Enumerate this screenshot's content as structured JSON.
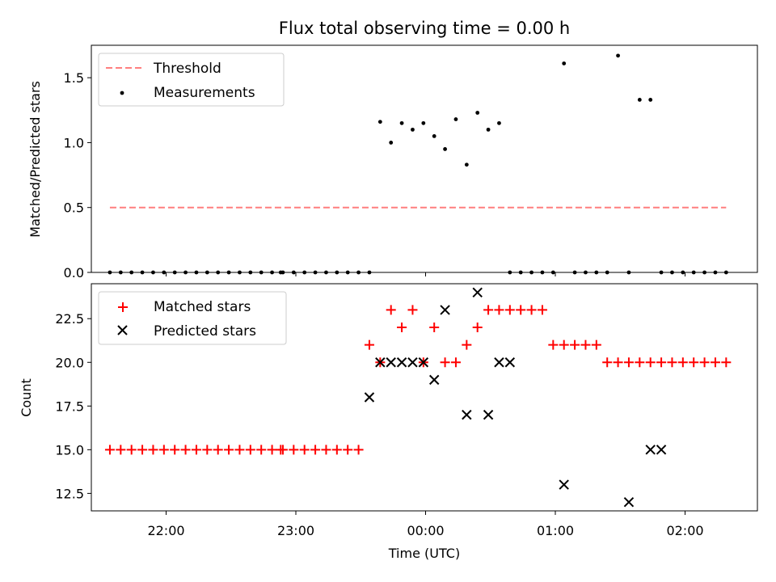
{
  "chart_data": [
    {
      "type": "scatter",
      "title": "Flux total observing time = 0.00 h",
      "xlabel": "",
      "ylabel": "Matched/Predicted stars",
      "ylim": [
        0,
        1.75
      ],
      "yticks": [
        "0.0",
        "0.5",
        "1.0",
        "1.5"
      ],
      "ytick_values": [
        0,
        0.5,
        1.0,
        1.5
      ],
      "legend_position": "upper-left",
      "grid": false,
      "series": [
        {
          "name": "Threshold",
          "kind": "line",
          "style": "dashed",
          "color": "#ff7f7f",
          "x": [
            "21:34",
            "02:19"
          ],
          "y": [
            0.5,
            0.5
          ]
        },
        {
          "name": "Measurements",
          "kind": "scatter",
          "marker": "dot",
          "color": "#000000",
          "x": [
            "21:34",
            "21:39",
            "21:44",
            "21:49",
            "21:54",
            "21:59",
            "22:04",
            "22:09",
            "22:14",
            "22:19",
            "22:24",
            "22:29",
            "22:34",
            "22:39",
            "22:44",
            "22:49",
            "22:53",
            "22:54",
            "22:59",
            "23:04",
            "23:09",
            "23:14",
            "23:19",
            "23:24",
            "23:29",
            "23:34",
            "23:39",
            "23:44",
            "23:49",
            "23:54",
            "23:59",
            "00:04",
            "00:09",
            "00:14",
            "00:19",
            "00:24",
            "00:29",
            "00:34",
            "00:39",
            "00:44",
            "00:49",
            "00:54",
            "00:59",
            "01:04",
            "01:09",
            "01:14",
            "01:19",
            "01:24",
            "01:29",
            "01:34",
            "01:39",
            "01:44",
            "01:49",
            "01:54",
            "01:59",
            "02:04",
            "02:09",
            "02:14",
            "02:19"
          ],
          "y": [
            0,
            0,
            0,
            0,
            0,
            0,
            0,
            0,
            0,
            0,
            0,
            0,
            0,
            0,
            0,
            0,
            0,
            0,
            0,
            0,
            0,
            0,
            0,
            0,
            0,
            0,
            1.16,
            1.0,
            1.15,
            1.1,
            1.15,
            1.05,
            0.95,
            1.18,
            0.83,
            1.23,
            1.1,
            1.15,
            0,
            0,
            0,
            0,
            0,
            1.61,
            0,
            0,
            0,
            0,
            1.67,
            0,
            1.33,
            1.33,
            0,
            0,
            0,
            0,
            0,
            0,
            0
          ]
        }
      ]
    },
    {
      "type": "scatter",
      "title": "",
      "xlabel": "Time (UTC)",
      "ylabel": "Count",
      "ylim": [
        11.5,
        24.5
      ],
      "yticks": [
        "12.5",
        "15.0",
        "17.5",
        "20.0",
        "22.5"
      ],
      "ytick_values": [
        12.5,
        15.0,
        17.5,
        20.0,
        22.5
      ],
      "xticks": [
        "22:00",
        "23:00",
        "00:00",
        "01:00",
        "02:00"
      ],
      "legend_position": "upper-left",
      "grid": false,
      "series": [
        {
          "name": "Matched stars",
          "kind": "scatter",
          "marker": "plus",
          "color": "#ff0000",
          "x": [
            "21:34",
            "21:39",
            "21:44",
            "21:49",
            "21:54",
            "21:59",
            "22:04",
            "22:09",
            "22:14",
            "22:19",
            "22:24",
            "22:29",
            "22:34",
            "22:39",
            "22:44",
            "22:49",
            "22:53",
            "22:54",
            "22:59",
            "23:04",
            "23:09",
            "23:14",
            "23:19",
            "23:24",
            "23:29",
            "23:34",
            "23:39",
            "23:44",
            "23:49",
            "23:54",
            "23:59",
            "00:04",
            "00:09",
            "00:14",
            "00:19",
            "00:24",
            "00:29",
            "00:34",
            "00:39",
            "00:44",
            "00:49",
            "00:54",
            "00:59",
            "01:04",
            "01:09",
            "01:14",
            "01:19",
            "01:24",
            "01:29",
            "01:34",
            "01:39",
            "01:44",
            "01:49",
            "01:54",
            "01:59",
            "02:04",
            "02:09",
            "02:14",
            "02:19"
          ],
          "y": [
            15,
            15,
            15,
            15,
            15,
            15,
            15,
            15,
            15,
            15,
            15,
            15,
            15,
            15,
            15,
            15,
            15,
            15,
            15,
            15,
            15,
            15,
            15,
            15,
            15,
            21,
            20,
            23,
            22,
            23,
            20,
            22,
            20,
            20,
            21,
            22,
            23,
            23,
            23,
            23,
            23,
            23,
            21,
            21,
            21,
            21,
            21,
            20,
            20,
            20,
            20,
            20,
            20,
            20,
            20,
            20,
            20,
            20,
            20
          ]
        },
        {
          "name": "Predicted stars",
          "kind": "scatter",
          "marker": "x",
          "color": "#000000",
          "x": [
            "23:34",
            "23:39",
            "23:44",
            "23:49",
            "23:54",
            "23:59",
            "00:04",
            "00:09",
            "00:19",
            "00:24",
            "00:29",
            "00:34",
            "00:39",
            "01:04",
            "01:34",
            "01:44",
            "01:49"
          ],
          "y": [
            18,
            20,
            20,
            20,
            20,
            20,
            19,
            23,
            17,
            24,
            17,
            20,
            20,
            13,
            12,
            15,
            15
          ]
        }
      ]
    }
  ]
}
